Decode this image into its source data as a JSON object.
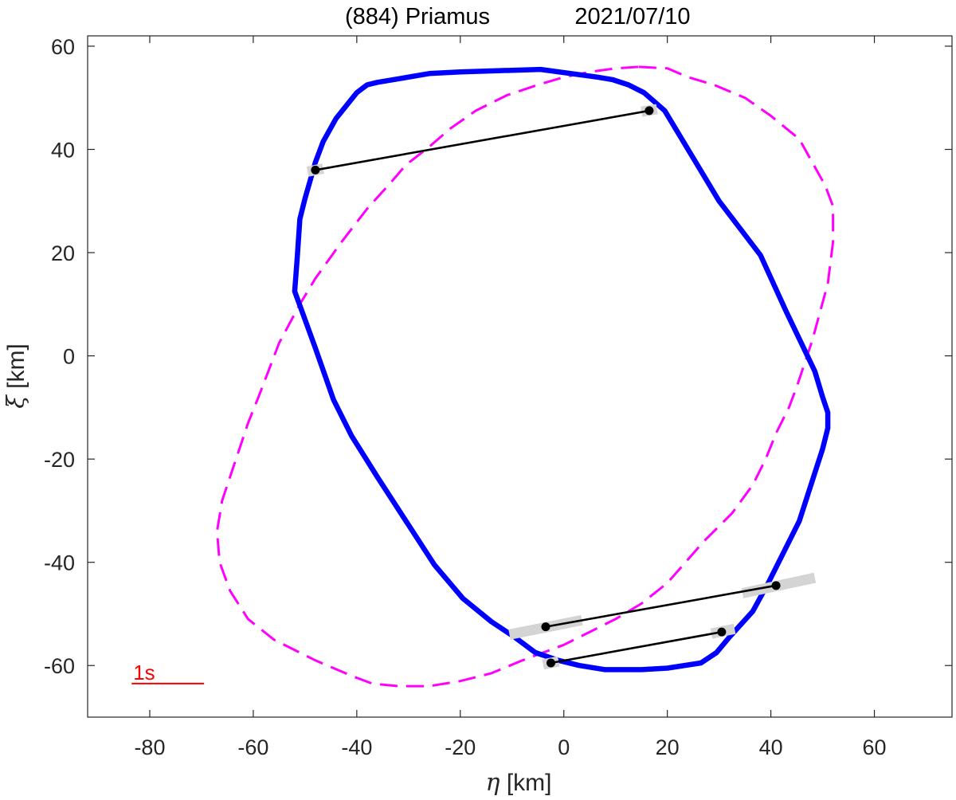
{
  "chart_data": {
    "type": "line",
    "title_object": "(884) Priamus",
    "title_date": "2021/07/10",
    "xlabel_symbol": "η",
    "xlabel_unit": "[km]",
    "ylabel_symbol": "ξ",
    "ylabel_unit": "[km]",
    "xlim": [
      -92,
      75
    ],
    "ylim": [
      -70,
      62
    ],
    "xticks": [
      -80,
      -60,
      -40,
      -20,
      0,
      20,
      40,
      60
    ],
    "yticks": [
      -60,
      -40,
      -20,
      0,
      20,
      40,
      60
    ],
    "grid": false,
    "colors": {
      "solid_profile": "#0000ff",
      "dashed_profile": "#ff00ff",
      "chords": "#000000",
      "chord_uncertainty": "#d4d4d4",
      "scale_bar": "#ff0000",
      "axes": "#262626"
    },
    "solid_profile": {
      "x": [
        -4.5,
        6.5,
        9.5,
        12.5,
        15.5,
        19.5,
        30,
        38,
        43,
        48.5,
        50,
        51,
        51,
        50,
        45.5,
        39.5,
        36.5,
        32,
        29.5,
        26.5,
        20,
        15,
        8,
        3,
        -1,
        -5.5,
        -9.5,
        -14,
        -19.5,
        -25,
        -36,
        -41,
        -44.5,
        -48,
        -52,
        -51.5,
        -51,
        -50,
        -49,
        -48,
        -46.5,
        -44,
        -40,
        -38,
        -36,
        -33,
        -26,
        -20,
        -14
      ],
      "y": [
        55.5,
        54,
        53.5,
        52.5,
        51,
        47.5,
        30,
        19.5,
        8.5,
        -3,
        -8,
        -11,
        -14,
        -18,
        -32,
        -44,
        -49.5,
        -54.5,
        -57.5,
        -59.5,
        -60.5,
        -60.8,
        -60.8,
        -60,
        -59,
        -57.5,
        -54.5,
        -51.5,
        -47,
        -40.5,
        -23.5,
        -15.5,
        -8.5,
        1.5,
        12.5,
        19,
        26.5,
        30.5,
        34,
        37.5,
        41.5,
        46,
        51,
        52.5,
        53,
        53.5,
        54.7,
        55,
        55.2
      ]
    },
    "dashed_profile": {
      "x": [
        14.5,
        20,
        24,
        29,
        35,
        40,
        45.5,
        50.5,
        52,
        52,
        51,
        48,
        45,
        43.5,
        41,
        39,
        36.5,
        32.5,
        27,
        20,
        15,
        10,
        5,
        0,
        -8,
        -14,
        -20,
        -26,
        -32,
        -37,
        -41,
        -48,
        -56,
        -61,
        -64.5,
        -66.5,
        -67,
        -66,
        -64,
        -62.5,
        -61,
        -59,
        -55,
        -51,
        -48,
        -43,
        -38,
        -33.5,
        -30.5,
        -26,
        -22,
        -17,
        -11,
        -5,
        0,
        5,
        10
      ],
      "y": [
        56,
        55.7,
        54,
        52.5,
        50,
        46.5,
        42,
        33,
        29,
        22,
        14,
        3,
        -6,
        -10,
        -15,
        -20,
        -25,
        -30.5,
        -36,
        -44,
        -48,
        -51,
        -53.5,
        -56,
        -59,
        -61.5,
        -63,
        -64,
        -64,
        -63.5,
        -62,
        -59,
        -55,
        -51,
        -45.5,
        -40,
        -34,
        -28,
        -22,
        -17.5,
        -13,
        -8,
        2.5,
        10,
        15,
        22,
        28.5,
        33.5,
        37,
        40.5,
        44,
        47.5,
        50.5,
        52.5,
        54,
        55,
        55.7
      ]
    },
    "chords": [
      {
        "x1": -48,
        "y1": 36,
        "x2": 16.5,
        "y2": 47.5
      },
      {
        "x1": -3.5,
        "y1": -52.5,
        "x2": 41,
        "y2": -44.5
      },
      {
        "x1": -2.5,
        "y1": -59.5,
        "x2": 30.5,
        "y2": -53.5
      }
    ],
    "chord_uncertainties": [
      {
        "x1": -49.5,
        "y1": 35.7,
        "x2": -46.5,
        "y2": 36.3
      },
      {
        "x1": 15,
        "y1": 47.3,
        "x2": 18,
        "y2": 47.8
      },
      {
        "x1": -10.5,
        "y1": -54,
        "x2": 3.5,
        "y2": -51.2
      },
      {
        "x1": 34.5,
        "y1": -46,
        "x2": 48.5,
        "y2": -43
      },
      {
        "x1": -4,
        "y1": -59.8,
        "x2": -1,
        "y2": -59.2
      },
      {
        "x1": 28.5,
        "y1": -53.8,
        "x2": 33,
        "y2": -52.9
      }
    ],
    "scale_bar": {
      "label": "1s",
      "x1": -83.5,
      "x2": -69.5,
      "y": -63.5
    }
  }
}
